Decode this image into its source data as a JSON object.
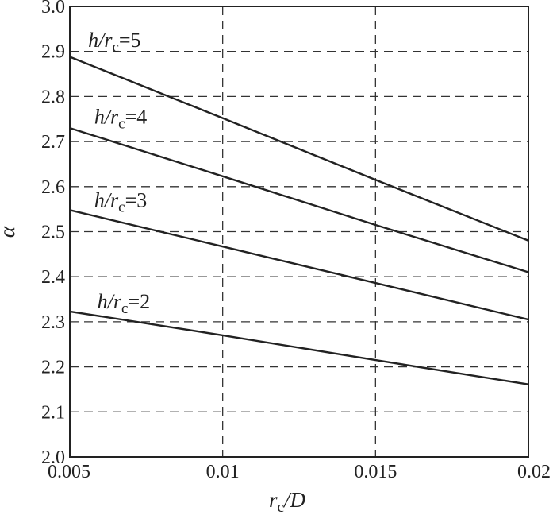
{
  "chart_data": {
    "type": "line",
    "title": "",
    "xlabel": {
      "main": "r",
      "sub": "c",
      "tail": "/D"
    },
    "ylabel": "α",
    "xlim": [
      0.005,
      0.02
    ],
    "ylim": [
      2.0,
      3.0
    ],
    "x_ticks": [
      0.005,
      0.01,
      0.015,
      0.02
    ],
    "x_tick_labels": [
      "0.005",
      "0.01",
      "0.015",
      "0.02"
    ],
    "y_ticks": [
      2.0,
      2.1,
      2.2,
      2.3,
      2.4,
      2.5,
      2.6,
      2.7,
      2.8,
      2.9,
      3.0
    ],
    "y_tick_labels": [
      "2.0",
      "2.1",
      "2.2",
      "2.3",
      "2.4",
      "2.5",
      "2.6",
      "2.7",
      "2.8",
      "2.9",
      "3.0"
    ],
    "grid": true,
    "series": [
      {
        "label_main": "h/r",
        "label_sub": "c",
        "label_eq": "=5",
        "label_x": 0.0056,
        "label_y": 2.91,
        "x": [
          0.005,
          0.01,
          0.015,
          0.02
        ],
        "y": [
          2.888,
          2.752,
          2.615,
          2.48
        ]
      },
      {
        "label_main": "h/r",
        "label_sub": "c",
        "label_eq": "=4",
        "label_x": 0.0058,
        "label_y": 2.74,
        "x": [
          0.005,
          0.01,
          0.015,
          0.02
        ],
        "y": [
          2.73,
          2.623,
          2.515,
          2.41
        ]
      },
      {
        "label_main": "h/r",
        "label_sub": "c",
        "label_eq": "=3",
        "label_x": 0.0058,
        "label_y": 2.555,
        "x": [
          0.005,
          0.01,
          0.015,
          0.02
        ],
        "y": [
          2.548,
          2.467,
          2.386,
          2.305
        ]
      },
      {
        "label_main": "h/r",
        "label_sub": "c",
        "label_eq": "=2",
        "label_x": 0.0059,
        "label_y": 2.33,
        "x": [
          0.005,
          0.01,
          0.015,
          0.02
        ],
        "y": [
          2.323,
          2.27,
          2.215,
          2.161
        ]
      }
    ]
  }
}
